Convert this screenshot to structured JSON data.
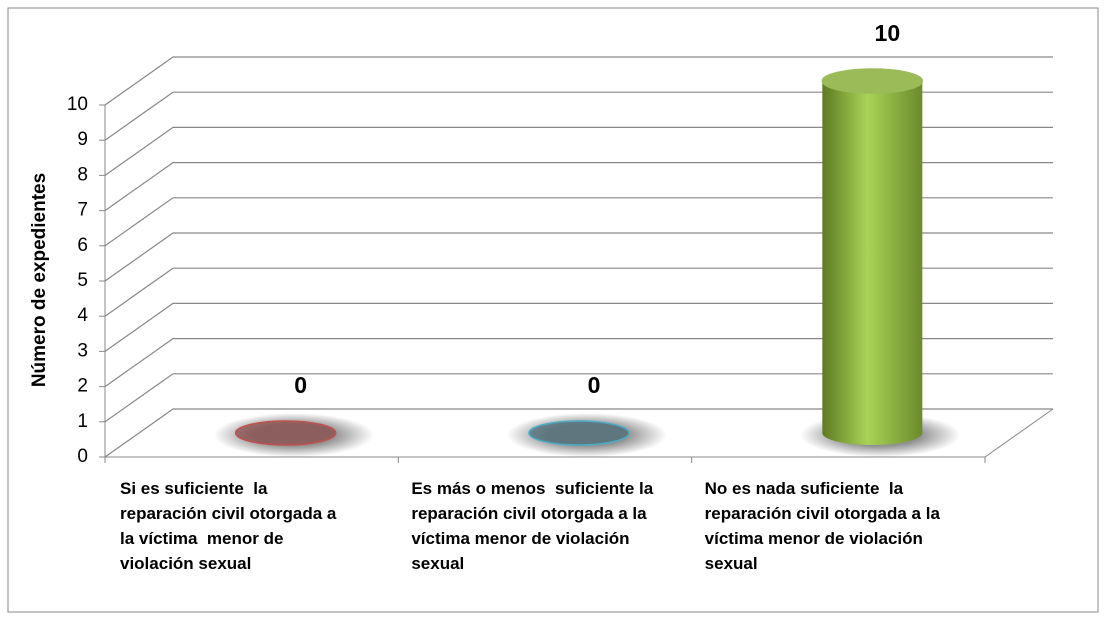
{
  "chart_data": {
    "type": "cylinder",
    "y_label": "Número de expedientes",
    "categories": [
      "Si es suficiente  la reparación civil otorgada a la víctima  menor de violación sexual",
      "Es más o menos  suficiente la reparación civil otorgada a la víctima menor de violación sexual",
      "No es nada suficiente  la reparación civil otorgada a la víctima menor de violación sexual"
    ],
    "values": [
      0,
      0,
      10
    ],
    "colors": [
      "#c0504d",
      "#4bacc6",
      "#9bbb59"
    ],
    "ylim": [
      0,
      10
    ],
    "yticks": [
      0,
      1,
      2,
      3,
      4,
      5,
      6,
      7,
      8,
      9,
      10
    ],
    "grid": true
  }
}
